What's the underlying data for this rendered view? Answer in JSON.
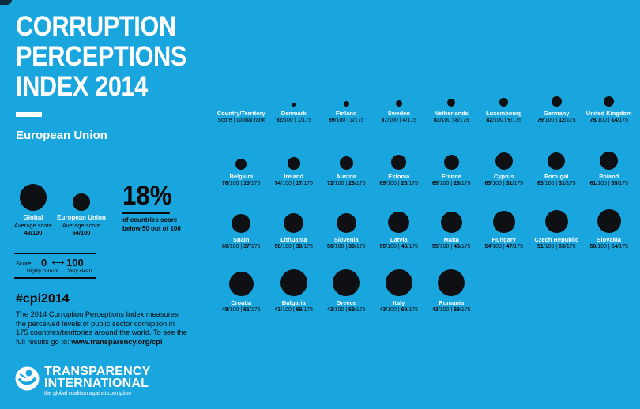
{
  "colors": {
    "background": "#19a5de",
    "bubble": "#0e1013",
    "text_dark": "#0a0a0a",
    "text_light": "#ffffff"
  },
  "header": {
    "title_line1": "CORRUPTION",
    "title_line2": "PERCEPTIONS",
    "title_line3": "INDEX 2014",
    "subtitle": "European Union"
  },
  "legend": {
    "global": {
      "label": "Global",
      "sub": "Average score",
      "score_text": "43/100",
      "score": 43
    },
    "eu": {
      "label": "European Union",
      "sub": "Average score",
      "score_text": "64/100",
      "score": 64
    },
    "stat": {
      "big": "18%",
      "line1": "of countries score",
      "line2": "below 50 out of 100"
    },
    "scale": {
      "label": "Score:",
      "min": "0",
      "max": "100",
      "arrow": "⟷",
      "min_desc": "Highly corrupt",
      "max_desc": "Very clean"
    }
  },
  "grid": {
    "header": {
      "line1": "Country/Territory",
      "line2": "Score | Global rank"
    },
    "score_suffix": "/100",
    "separator": " | ",
    "rank_suffix": "/175",
    "rows": [
      [
        {
          "name": "Denmark",
          "score": 92,
          "rank": 1
        },
        {
          "name": "Finland",
          "score": 89,
          "rank": 3
        },
        {
          "name": "Sweden",
          "score": 87,
          "rank": 4
        },
        {
          "name": "Netherlands",
          "score": 83,
          "rank": 8
        },
        {
          "name": "Luxembourg",
          "score": 82,
          "rank": 9
        },
        {
          "name": "Germany",
          "score": 79,
          "rank": 12
        },
        {
          "name": "United Kingdom",
          "score": 78,
          "rank": 14
        }
      ],
      [
        {
          "name": "Belgium",
          "score": 76,
          "rank": 15
        },
        {
          "name": "Ireland",
          "score": 74,
          "rank": 17
        },
        {
          "name": "Austria",
          "score": 72,
          "rank": 23
        },
        {
          "name": "Estonia",
          "score": 69,
          "rank": 26
        },
        {
          "name": "France",
          "score": 69,
          "rank": 26
        },
        {
          "name": "Cyprus",
          "score": 63,
          "rank": 31
        },
        {
          "name": "Portugal",
          "score": 63,
          "rank": 31
        },
        {
          "name": "Poland",
          "score": 61,
          "rank": 35
        }
      ],
      [
        {
          "name": "Spain",
          "score": 60,
          "rank": 37
        },
        {
          "name": "Lithuania",
          "score": 58,
          "rank": 39
        },
        {
          "name": "Slovenia",
          "score": 58,
          "rank": 39
        },
        {
          "name": "Latvia",
          "score": 55,
          "rank": 43
        },
        {
          "name": "Malta",
          "score": 55,
          "rank": 43
        },
        {
          "name": "Hungary",
          "score": 54,
          "rank": 47
        },
        {
          "name": "Czech Republic",
          "score": 51,
          "rank": 53
        },
        {
          "name": "Slovakia",
          "score": 50,
          "rank": 54
        }
      ],
      [
        {
          "name": "Croatia",
          "score": 48,
          "rank": 61
        },
        {
          "name": "Bulgaria",
          "score": 43,
          "rank": 69
        },
        {
          "name": "Greece",
          "score": 43,
          "rank": 69
        },
        {
          "name": "Italy",
          "score": 43,
          "rank": 69
        },
        {
          "name": "Romania",
          "score": 43,
          "rank": 69
        }
      ]
    ]
  },
  "footer": {
    "hashtag": "#cpi2014",
    "desc_lines": [
      "The 2014 Corruption Perceptions Index measures",
      "the perceived levels of public sector corruption in",
      "175 countries/territories around the world. To see the"
    ],
    "desc_line4_prefix": "full results go to: ",
    "link": "www.transparency.org/cpi",
    "logo": {
      "name_line1": "TRANSPARENCY",
      "name_line2": "INTERNATIONAL",
      "tagline": "the global coalition against corruption"
    }
  },
  "chart_data": {
    "type": "scatter",
    "title": "Corruption Perceptions Index 2014 – European Union",
    "encoding": "bubble diameter proportional to (100 − score); lower score = larger circle",
    "score_scale": {
      "min": 0,
      "max": 100,
      "min_label": "Highly corrupt",
      "max_label": "Very clean"
    },
    "total_ranked": 175,
    "averages": {
      "global": 43,
      "european_union": 64
    },
    "stat": "18% of countries score below 50 out of 100",
    "points": [
      {
        "country": "Denmark",
        "score": 92,
        "rank": 1
      },
      {
        "country": "Finland",
        "score": 89,
        "rank": 3
      },
      {
        "country": "Sweden",
        "score": 87,
        "rank": 4
      },
      {
        "country": "Netherlands",
        "score": 83,
        "rank": 8
      },
      {
        "country": "Luxembourg",
        "score": 82,
        "rank": 9
      },
      {
        "country": "Germany",
        "score": 79,
        "rank": 12
      },
      {
        "country": "United Kingdom",
        "score": 78,
        "rank": 14
      },
      {
        "country": "Belgium",
        "score": 76,
        "rank": 15
      },
      {
        "country": "Ireland",
        "score": 74,
        "rank": 17
      },
      {
        "country": "Austria",
        "score": 72,
        "rank": 23
      },
      {
        "country": "Estonia",
        "score": 69,
        "rank": 26
      },
      {
        "country": "France",
        "score": 69,
        "rank": 26
      },
      {
        "country": "Cyprus",
        "score": 63,
        "rank": 31
      },
      {
        "country": "Portugal",
        "score": 63,
        "rank": 31
      },
      {
        "country": "Poland",
        "score": 61,
        "rank": 35
      },
      {
        "country": "Spain",
        "score": 60,
        "rank": 37
      },
      {
        "country": "Lithuania",
        "score": 58,
        "rank": 39
      },
      {
        "country": "Slovenia",
        "score": 58,
        "rank": 39
      },
      {
        "country": "Latvia",
        "score": 55,
        "rank": 43
      },
      {
        "country": "Malta",
        "score": 55,
        "rank": 43
      },
      {
        "country": "Hungary",
        "score": 54,
        "rank": 47
      },
      {
        "country": "Czech Republic",
        "score": 51,
        "rank": 53
      },
      {
        "country": "Slovakia",
        "score": 50,
        "rank": 54
      },
      {
        "country": "Croatia",
        "score": 48,
        "rank": 61
      },
      {
        "country": "Bulgaria",
        "score": 43,
        "rank": 69
      },
      {
        "country": "Greece",
        "score": 43,
        "rank": 69
      },
      {
        "country": "Italy",
        "score": 43,
        "rank": 69
      },
      {
        "country": "Romania",
        "score": 43,
        "rank": 69
      }
    ]
  }
}
